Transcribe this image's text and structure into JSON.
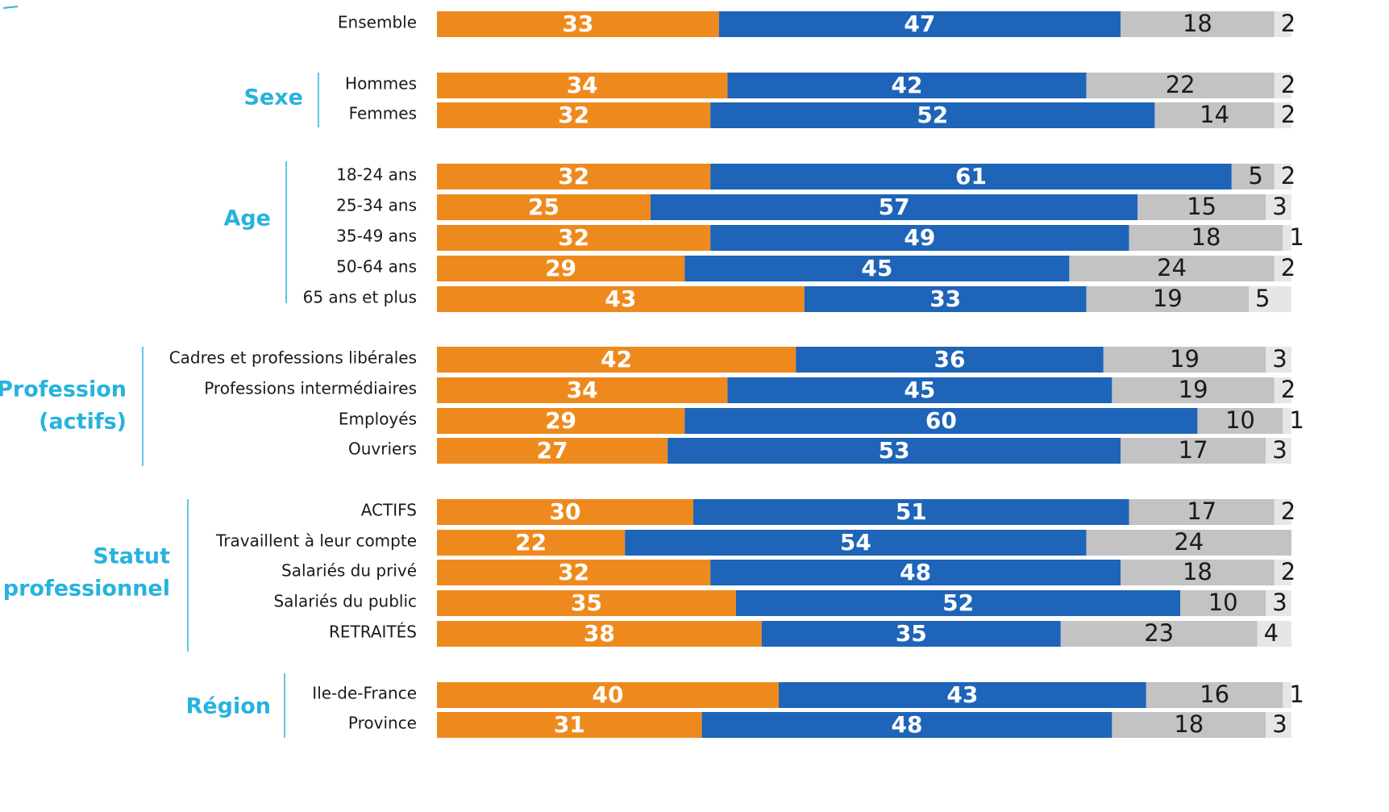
{
  "chart_data": {
    "type": "bar",
    "orientation": "horizontal",
    "stacked": true,
    "xlim": [
      0,
      100
    ],
    "colors": [
      "#ee8a1d",
      "#1e64b8",
      "#c3c3c3",
      "#e6e6e6"
    ],
    "groups": [
      {
        "name": "",
        "rows": [
          {
            "label": "Ensemble",
            "values": [
              33,
              47,
              18,
              2
            ]
          }
        ]
      },
      {
        "name": "Sexe",
        "rows": [
          {
            "label": "Hommes",
            "values": [
              34,
              42,
              22,
              2
            ]
          },
          {
            "label": "Femmes",
            "values": [
              32,
              52,
              14,
              2
            ]
          }
        ]
      },
      {
        "name": "Age",
        "rows": [
          {
            "label": "18-24 ans",
            "values": [
              32,
              61,
              5,
              2
            ]
          },
          {
            "label": "25-34 ans",
            "values": [
              25,
              57,
              15,
              3
            ]
          },
          {
            "label": "35-49 ans",
            "values": [
              32,
              49,
              18,
              1
            ]
          },
          {
            "label": "50-64 ans",
            "values": [
              29,
              45,
              24,
              2
            ]
          },
          {
            "label": "65 ans et plus",
            "values": [
              43,
              33,
              19,
              5
            ]
          }
        ]
      },
      {
        "name": "Profession (actifs)",
        "rows": [
          {
            "label": "Cadres et professions libérales",
            "values": [
              42,
              36,
              19,
              3
            ]
          },
          {
            "label": "Professions intermédiaires",
            "values": [
              34,
              45,
              19,
              2
            ]
          },
          {
            "label": "Employés",
            "values": [
              29,
              60,
              10,
              1
            ]
          },
          {
            "label": "Ouvriers",
            "values": [
              27,
              53,
              17,
              3
            ]
          }
        ]
      },
      {
        "name": "Statut professionnel",
        "rows": [
          {
            "label": "ACTIFS",
            "values": [
              30,
              51,
              17,
              2
            ]
          },
          {
            "label": "Travaillent à leur compte",
            "values": [
              22,
              54,
              24,
              null
            ]
          },
          {
            "label": "Salariés du privé",
            "values": [
              32,
              48,
              18,
              2
            ]
          },
          {
            "label": "Salariés du public",
            "values": [
              35,
              52,
              10,
              3
            ]
          },
          {
            "label": "RETRAITÉS",
            "values": [
              38,
              35,
              23,
              4
            ]
          }
        ]
      },
      {
        "name": "Région",
        "rows": [
          {
            "label": "Ile-de-France",
            "values": [
              40,
              43,
              16,
              1
            ]
          },
          {
            "label": "Province",
            "values": [
              31,
              48,
              18,
              3
            ]
          }
        ]
      }
    ]
  }
}
